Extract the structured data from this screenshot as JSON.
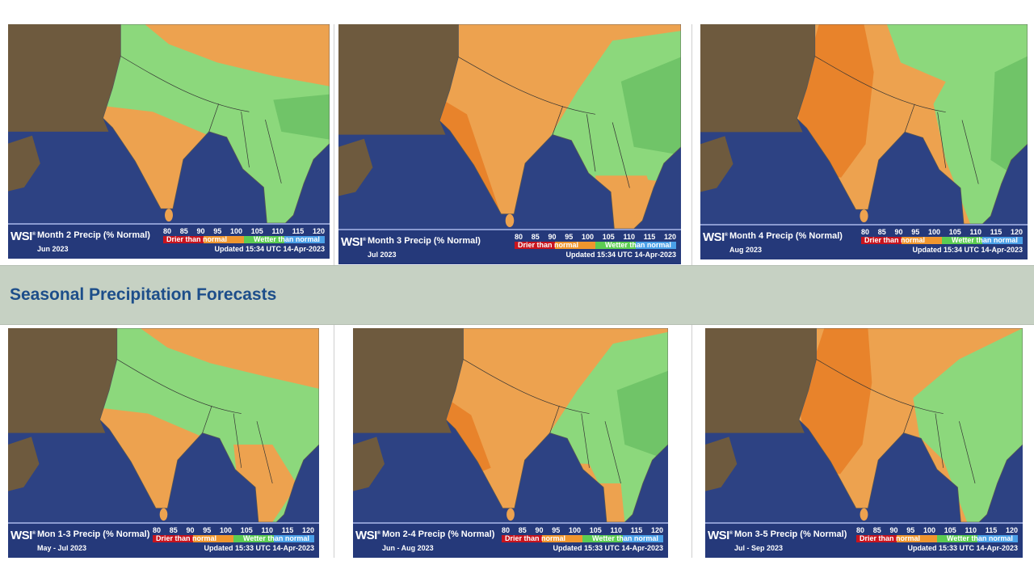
{
  "section_title": "Seasonal Precipitation Forecasts",
  "legend_common": {
    "brand": "WSI",
    "ticks": [
      "80",
      "85",
      "90",
      "95",
      "100",
      "105",
      "110",
      "115",
      "120"
    ],
    "drier_label": "Drier than normal",
    "wetter_label": "Wetter than normal",
    "colors": {
      "very_dry": "#c8141e",
      "dry": "#f0962e",
      "wet": "#5ccc52",
      "very_wet": "#4aa0e8",
      "ocean": "#2d4283",
      "orange": "#eda24f",
      "dark_orange": "#e8832b",
      "green": "#8cd87c",
      "dark_green": "#70c468",
      "terrain": "#6e5a3e"
    }
  },
  "monthly_maps": [
    {
      "title": "Month 2 Precip (% Normal)",
      "period": "Jun  2023",
      "updated": "Updated 15:34 UTC 14-Apr-2023"
    },
    {
      "title": "Month 3 Precip (% Normal)",
      "period": "Jul  2023",
      "updated": "Updated 15:34 UTC 14-Apr-2023"
    },
    {
      "title": "Month 4 Precip (% Normal)",
      "period": "Aug  2023",
      "updated": "Updated 15:34 UTC 14-Apr-2023"
    }
  ],
  "seasonal_maps": [
    {
      "title": "Mon 1-3 Precip (% Normal)",
      "period": "May - Jul  2023",
      "updated": "Updated 15:33 UTC 14-Apr-2023"
    },
    {
      "title": "Mon 2-4 Precip (% Normal)",
      "period": "Jun - Aug  2023",
      "updated": "Updated 15:33 UTC 14-Apr-2023"
    },
    {
      "title": "Mon 3-5 Precip (% Normal)",
      "period": "Jul - Sep  2023",
      "updated": "Updated 15:33 UTC 14-Apr-2023"
    }
  ]
}
